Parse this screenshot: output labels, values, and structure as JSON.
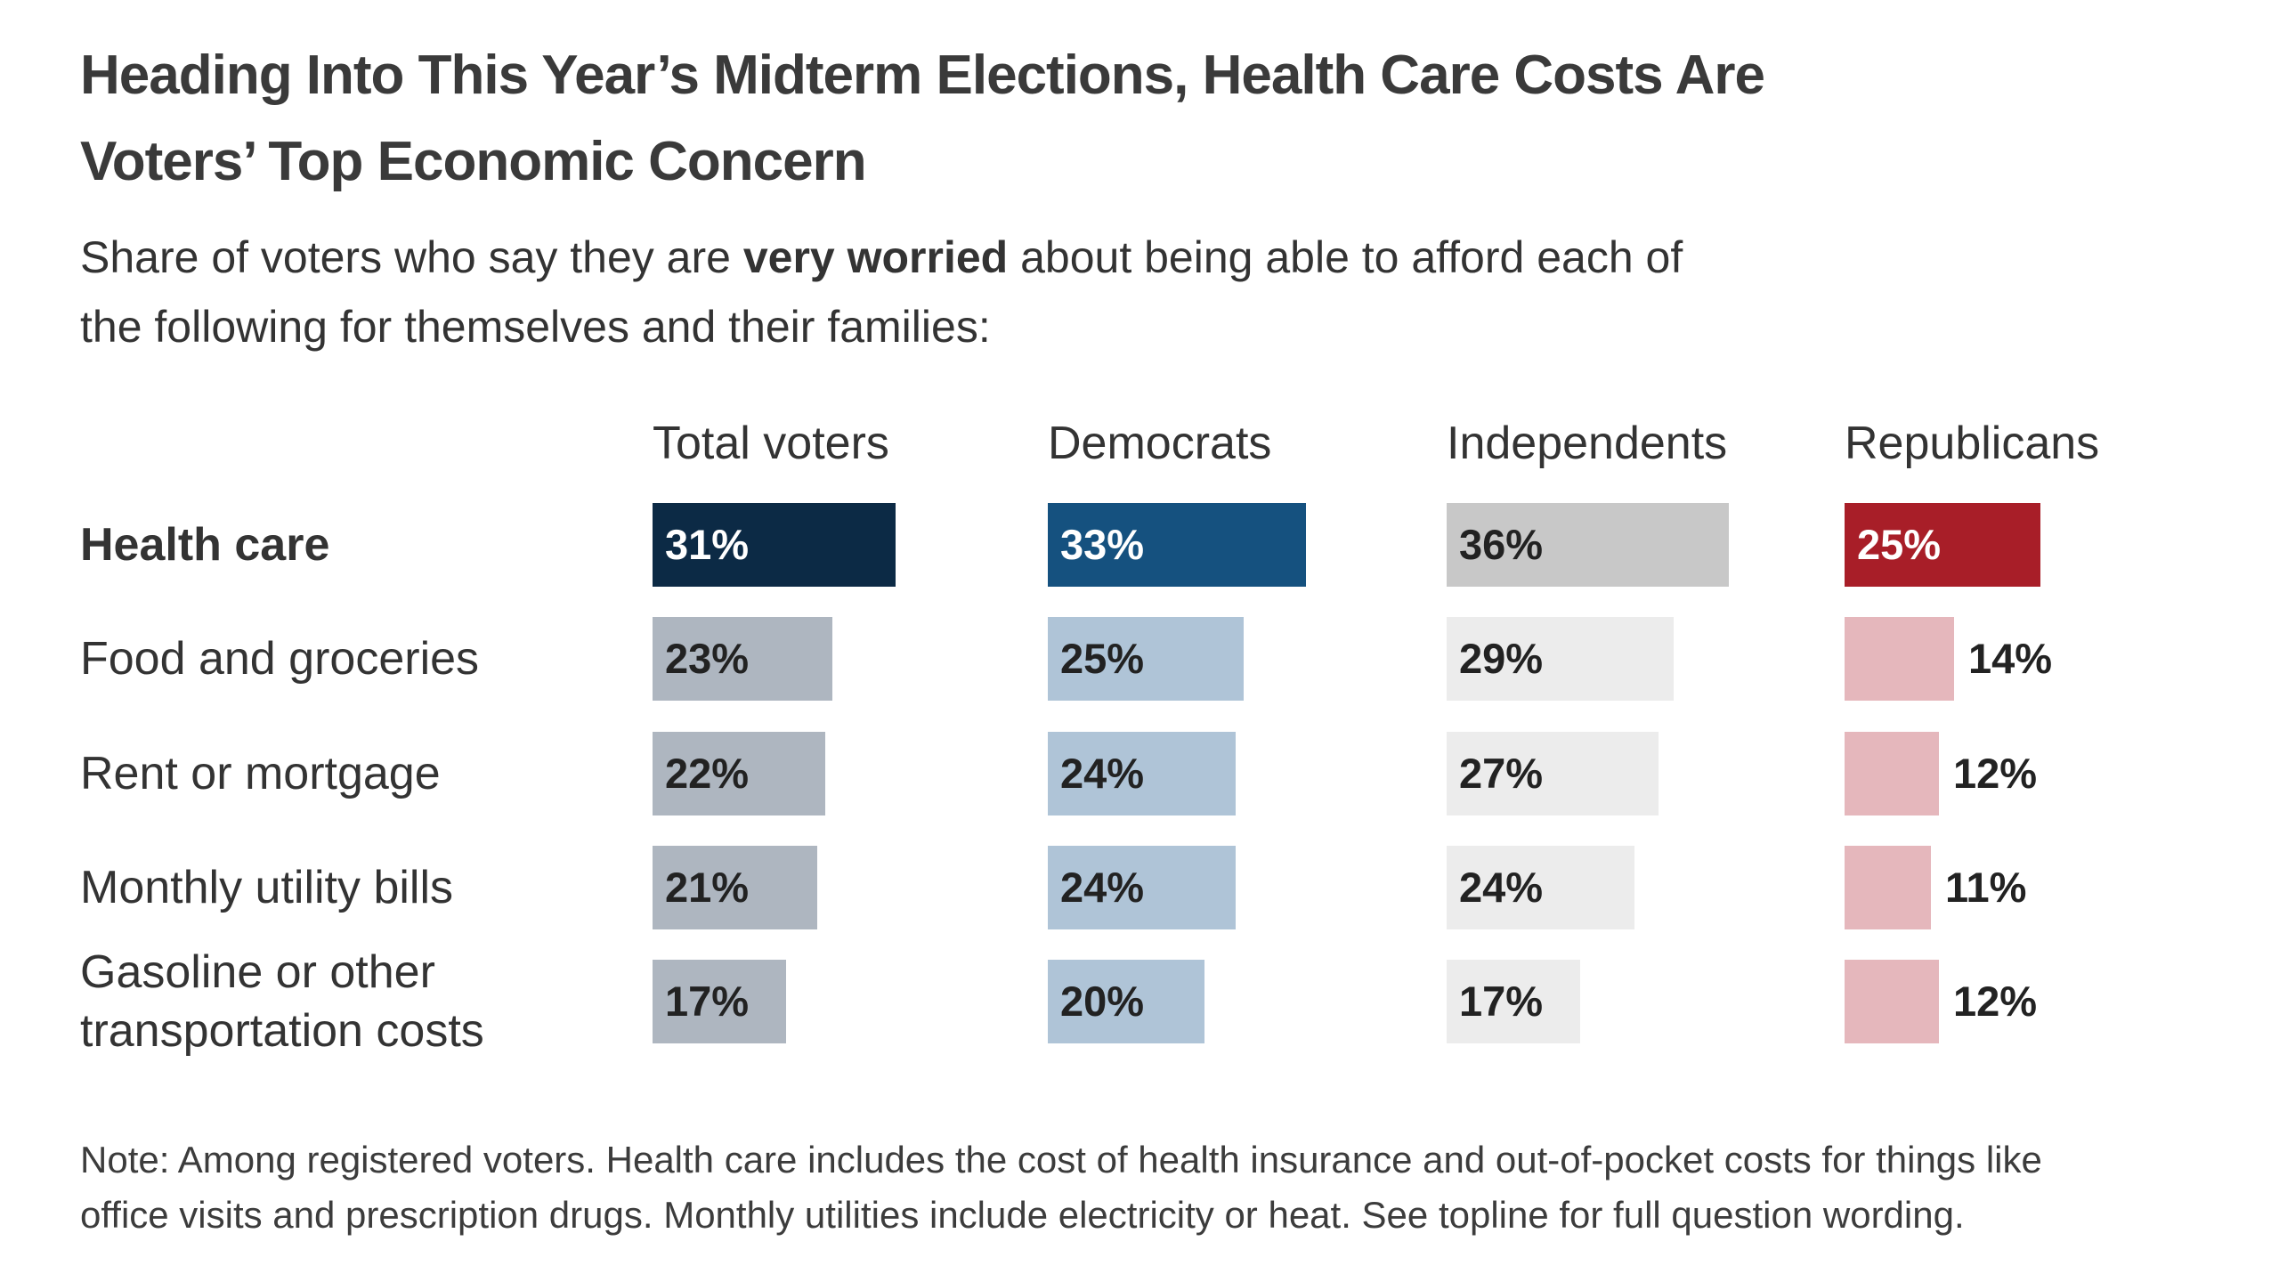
{
  "chart_data": {
    "type": "bar",
    "orientation": "horizontal",
    "value_format": "percent",
    "value_suffix": "%",
    "grid": false,
    "value_axis_visible": false,
    "xlim": [
      0,
      40
    ],
    "legend_position": "top-as-column-headers",
    "title_lines": [
      "Heading Into This Year’s Midterm Elections, Health Care Costs Are",
      "Voters’ Top Economic Concern"
    ],
    "subtitle": {
      "prefix": "Share of voters who say they are ",
      "bold": "very worried",
      "suffix_line1": " about being able to afford each of",
      "line2": "the following for themselves and their families:"
    },
    "categories": [
      "Health care",
      "Food and groceries",
      "Rent or mortgage",
      "Monthly utility bills",
      "Gasoline or other transportation costs"
    ],
    "emphasized_category_index": 0,
    "series": [
      {
        "name": "Total voters",
        "values": [
          31,
          23,
          22,
          21,
          17
        ],
        "bar_color_emphasis": "#0c2a45",
        "bar_color": "#aeb6c0",
        "value_text_color_emphasis": "#ffffff"
      },
      {
        "name": "Democrats",
        "values": [
          33,
          25,
          24,
          24,
          20
        ],
        "bar_color_emphasis": "#15517f",
        "bar_color": "#afc4d7",
        "value_text_color_emphasis": "#ffffff"
      },
      {
        "name": "Independents",
        "values": [
          36,
          29,
          27,
          24,
          17
        ],
        "bar_color_emphasis": "#c8c8c8",
        "bar_color": "#ececec",
        "value_text_color_emphasis": "#222222"
      },
      {
        "name": "Republicans",
        "values": [
          25,
          14,
          12,
          11,
          12
        ],
        "bar_color_emphasis": "#a81e28",
        "bar_color": "#e5b7bc",
        "value_text_color_emphasis": "#ffffff"
      }
    ],
    "value_label_color": "#222222",
    "note_lines": [
      "Note: Among registered voters. Health care includes the cost of health insurance and out-of-pocket costs for things like",
      "office visits and prescription drugs. Monthly utilities include electricity or heat. See topline for full question wording."
    ]
  }
}
